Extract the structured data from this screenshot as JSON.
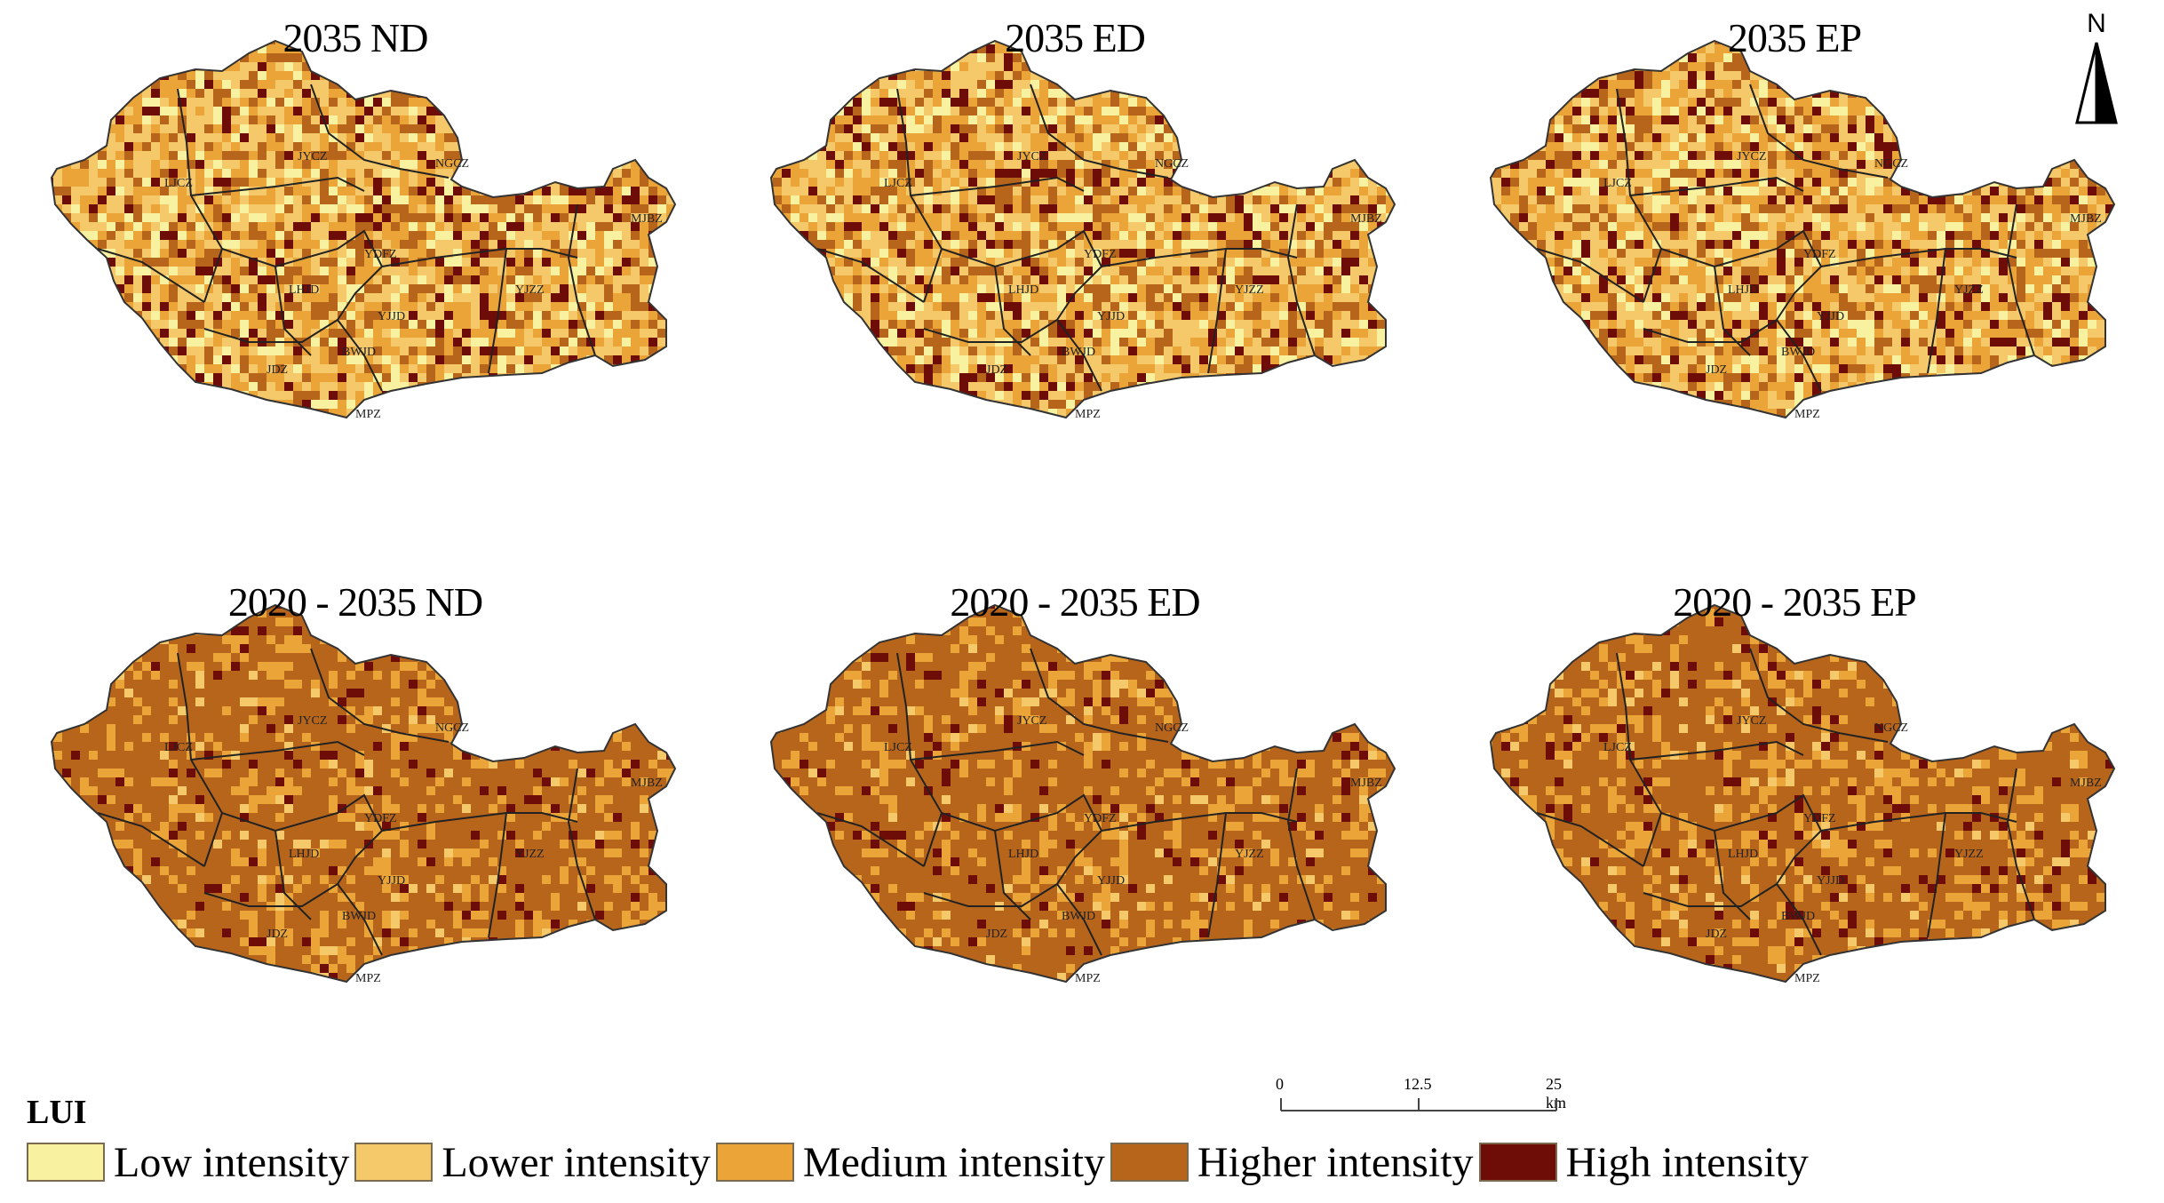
{
  "panels": [
    {
      "title": "2035 ND",
      "scheme": "mixed"
    },
    {
      "title": "2035 ED",
      "scheme": "mixed"
    },
    {
      "title": "2035 EP",
      "scheme": "mixed"
    },
    {
      "title": "2020 - 2035 ND",
      "scheme": "change"
    },
    {
      "title": "2020 - 2035 ED",
      "scheme": "change"
    },
    {
      "title": "2020 - 2035 EP",
      "scheme": "change"
    }
  ],
  "district_labels": [
    "LJCZ",
    "JYCZ",
    "NGCZ",
    "YDFZ",
    "LHJD",
    "MJBZ",
    "YJZZ",
    "JDZ",
    "YJJD",
    "BWJD",
    "MPZ"
  ],
  "north_arrow": {
    "label": "N"
  },
  "scale_bar": {
    "ticks": [
      "0",
      "12.5",
      "25 km"
    ]
  },
  "legend": {
    "title": "LUI",
    "items": [
      {
        "label": "Low intensity",
        "color": "#f8f2a0"
      },
      {
        "label": "Lower intensity",
        "color": "#f5c86a"
      },
      {
        "label": "Medium intensity",
        "color": "#eaa438"
      },
      {
        "label": "Higher intensity",
        "color": "#b8651c"
      },
      {
        "label": "High intensity",
        "color": "#6e0d08"
      }
    ]
  }
}
